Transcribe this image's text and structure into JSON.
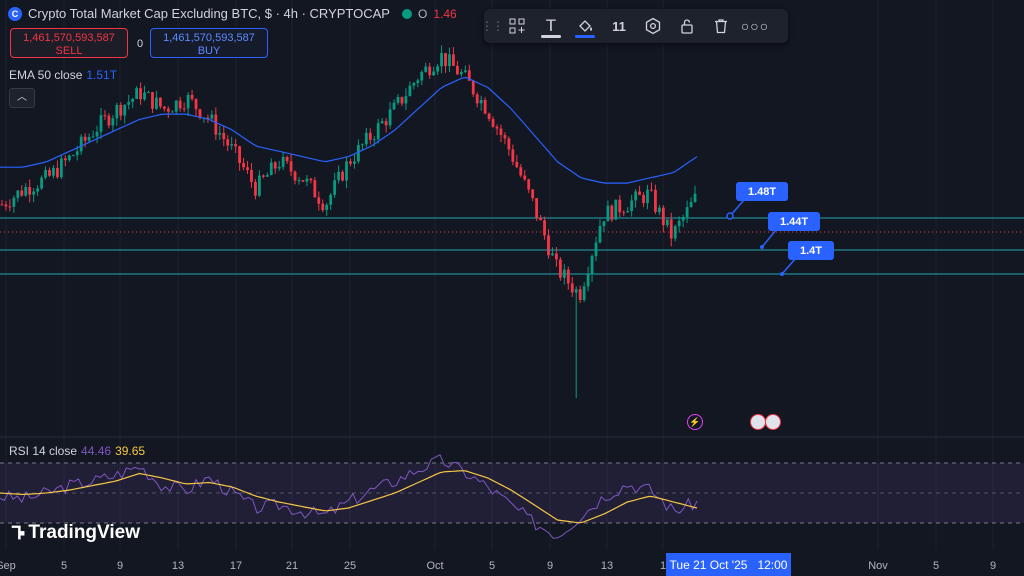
{
  "header": {
    "title": "Crypto Total Market Cap Excluding BTC, $ · 4h · CRYPTOCAP",
    "open_label": "O",
    "open_value": "1.46"
  },
  "trade": {
    "sell_price": "1,461,570,593,587",
    "sell_label": "SELL",
    "spread": "0",
    "buy_price": "1,461,570,593,587",
    "buy_label": "BUY"
  },
  "ema": {
    "label": "EMA 50 close",
    "value": "1.51T"
  },
  "toolbar": {
    "width_value": "11"
  },
  "rsi": {
    "label": "RSI 14 close",
    "value": "44.46",
    "ma_value": "39.65"
  },
  "brand": "TradingView",
  "x_ticks": [
    "Sep",
    "5",
    "9",
    "13",
    "17",
    "21",
    "25",
    "Oct",
    "5",
    "9",
    "13",
    "1",
    "Nov",
    "5",
    "9"
  ],
  "crosshair": {
    "date": "Tue 21 Oct '25",
    "time": "12:00"
  },
  "price_labels": [
    "1.48T",
    "1.44T",
    "1.4T"
  ],
  "colors": {
    "up": "#089981",
    "down": "#f23645",
    "ema": "#2962ff",
    "rsi": "#7e57c2",
    "rsi_ma": "#f7c744",
    "hline": "#22a6b3"
  },
  "chart_data": {
    "type": "candlestick",
    "series_name": "Crypto Total Market Cap Excluding BTC",
    "timeframe": "4h",
    "close_path": [
      1.42,
      1.45,
      1.47,
      1.51,
      1.56,
      1.6,
      1.63,
      1.6,
      1.62,
      1.58,
      1.52,
      1.45,
      1.5,
      1.47,
      1.42,
      1.5,
      1.55,
      1.6,
      1.66,
      1.7,
      1.66,
      1.6,
      1.52,
      1.42,
      1.3,
      1.25,
      1.4,
      1.42,
      1.44,
      1.36,
      1.43
    ],
    "ema_path": [
      1.49,
      1.49,
      1.5,
      1.52,
      1.54,
      1.56,
      1.58,
      1.59,
      1.59,
      1.58,
      1.56,
      1.53,
      1.52,
      1.51,
      1.5,
      1.51,
      1.53,
      1.56,
      1.6,
      1.64,
      1.66,
      1.64,
      1.6,
      1.55,
      1.5,
      1.47,
      1.46,
      1.46,
      1.47,
      1.48,
      1.51
    ],
    "rsi_path": [
      48,
      46,
      50,
      55,
      58,
      62,
      68,
      55,
      52,
      60,
      50,
      40,
      42,
      38,
      35,
      44,
      52,
      58,
      66,
      72,
      64,
      54,
      42,
      30,
      22,
      35,
      48,
      56,
      52,
      38,
      44
    ],
    "rsi_ma_path": [
      50,
      49,
      50,
      52,
      55,
      58,
      63,
      60,
      56,
      57,
      54,
      48,
      44,
      41,
      38,
      40,
      45,
      50,
      57,
      64,
      65,
      60,
      52,
      42,
      32,
      30,
      36,
      44,
      48,
      44,
      40
    ]
  }
}
